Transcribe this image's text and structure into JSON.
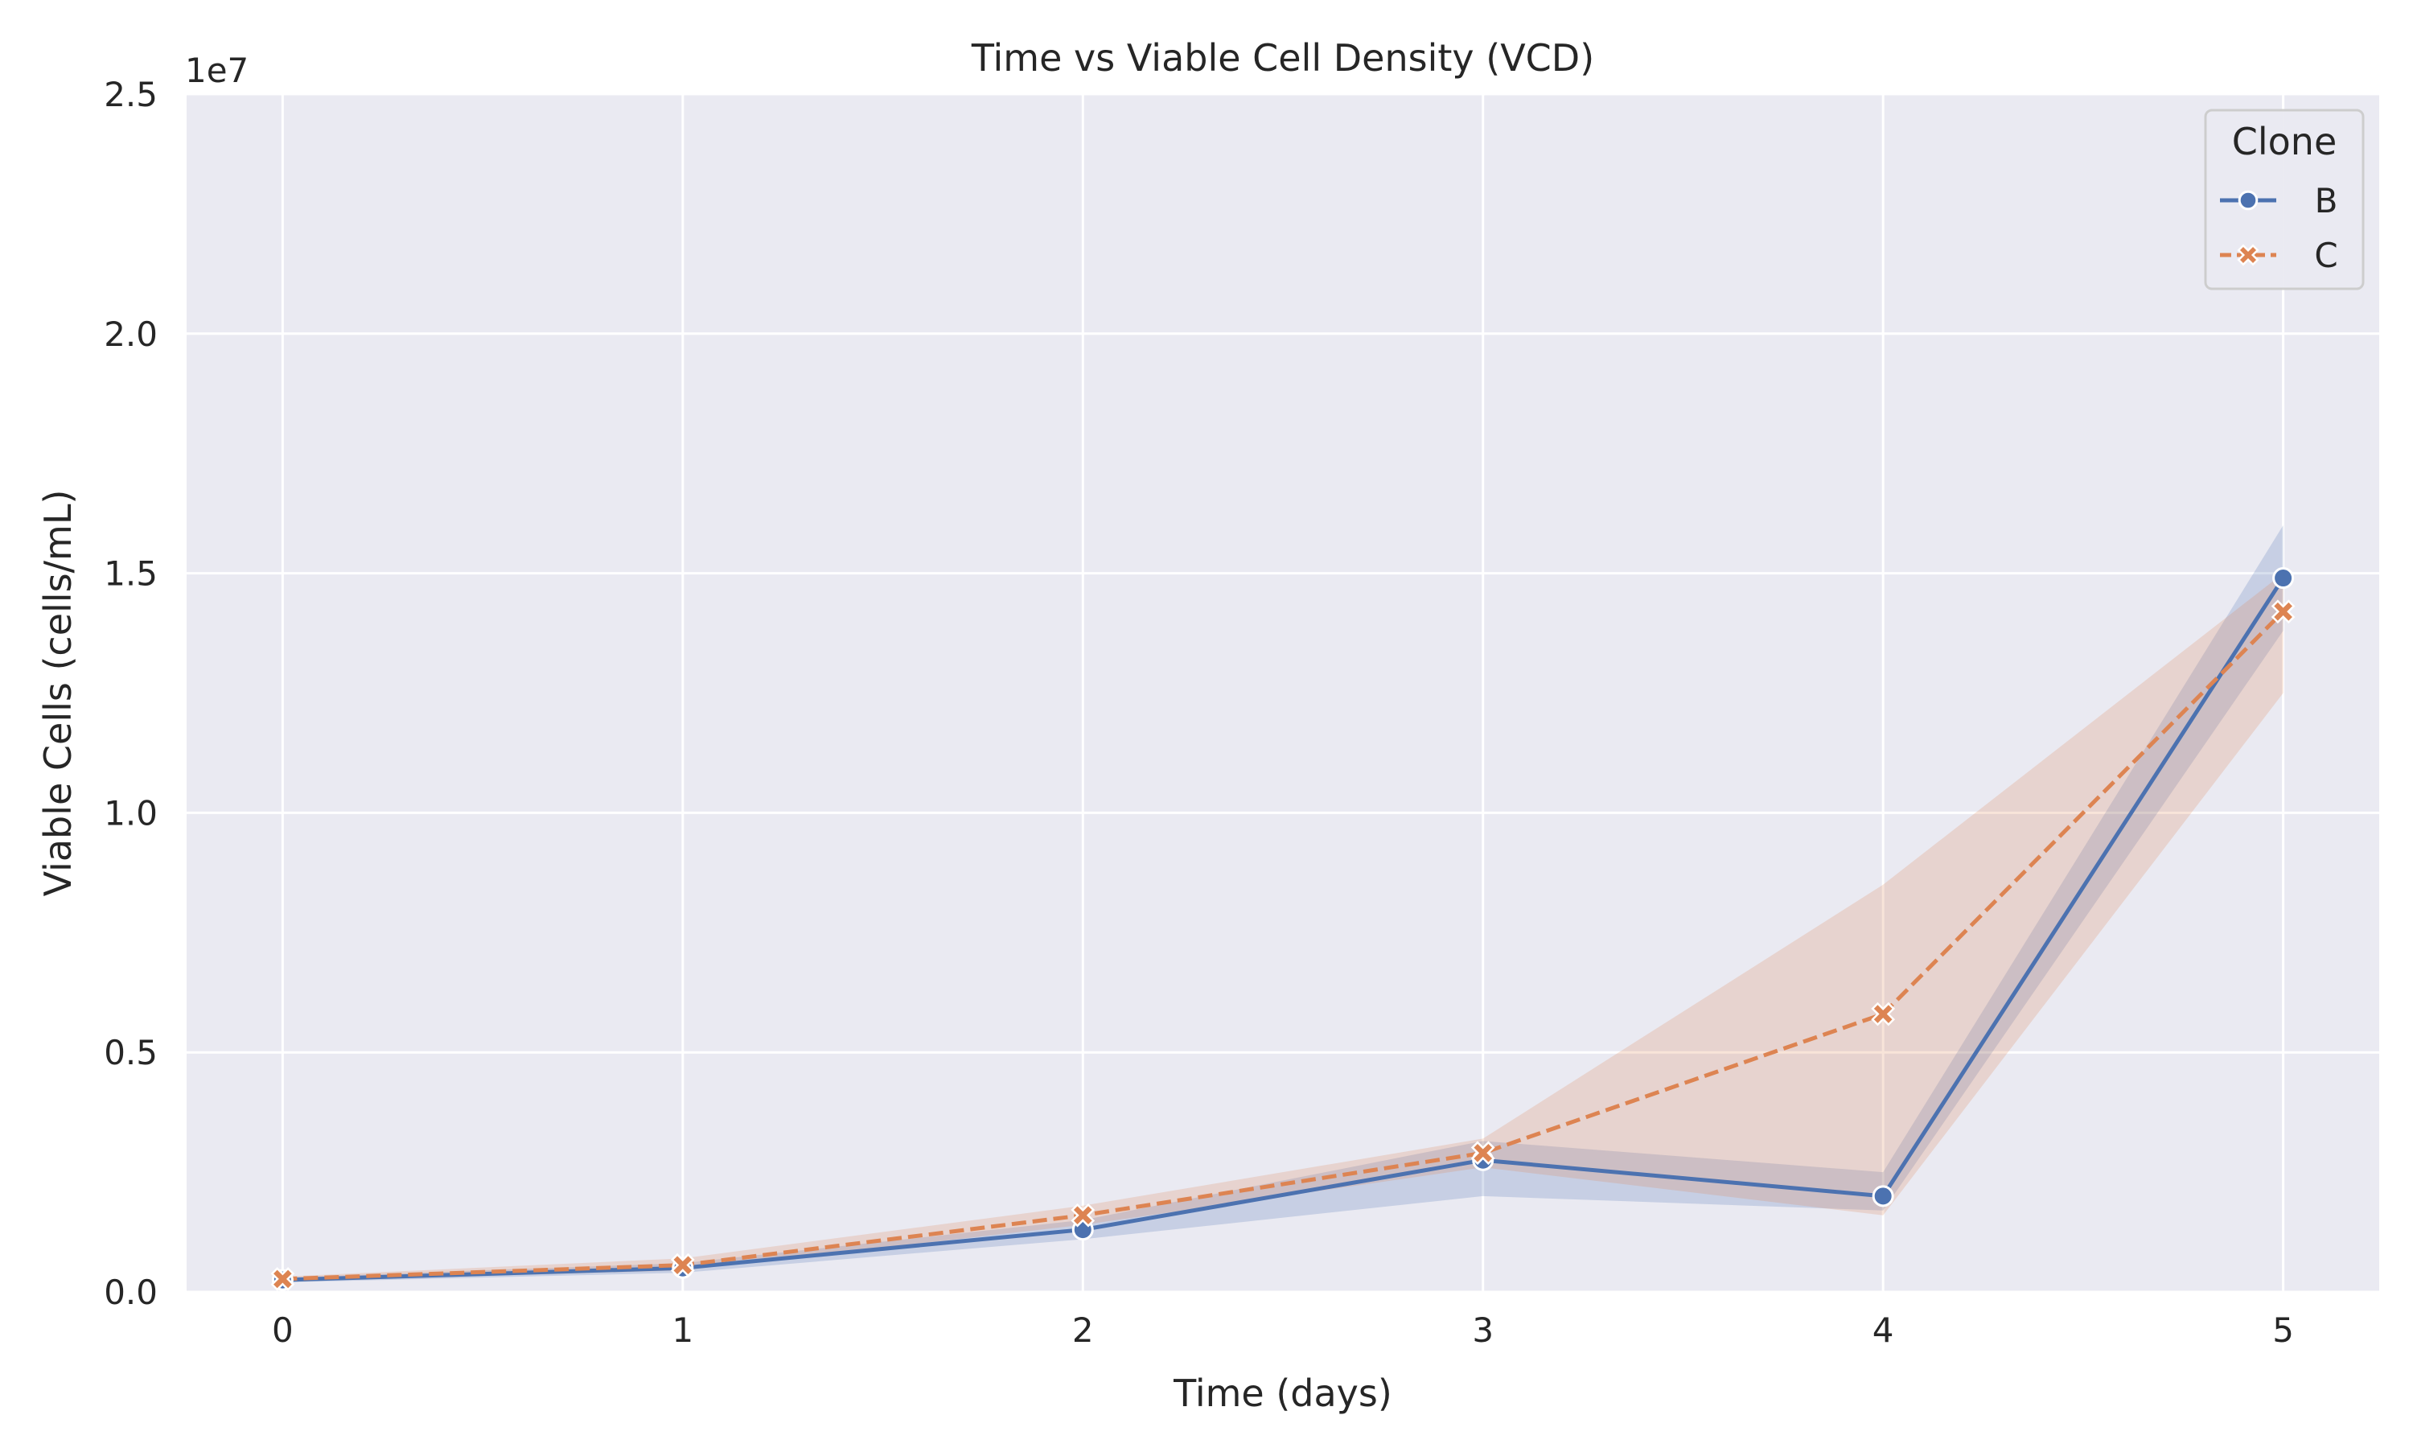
{
  "chart_data": {
    "type": "line",
    "title": "Time vs Viable Cell Density (VCD)",
    "xlabel": "Time (days)",
    "ylabel": "Viable Cells (cells/mL)",
    "y_offset_label": "1e7",
    "x": [
      0,
      1,
      2,
      3,
      4,
      5
    ],
    "x_tick_labels": [
      "0",
      "1",
      "2",
      "3",
      "4",
      "5"
    ],
    "y_ticks": [
      0,
      5000000,
      10000000,
      15000000,
      20000000,
      25000000
    ],
    "y_tick_labels": [
      "0.0",
      "0.5",
      "1.0",
      "1.5",
      "2.0",
      "2.5"
    ],
    "xlim": [
      -0.24,
      5.24
    ],
    "ylim": [
      0,
      25000000
    ],
    "grid": true,
    "legend": {
      "title": "Clone",
      "placement": "top-right"
    },
    "series": [
      {
        "name": "B",
        "color": "#4c72b0",
        "line_style": "solid",
        "marker": "circle",
        "values": [
          250000,
          500000,
          1300000,
          2750000,
          2000000,
          14900000
        ],
        "ci_lower": [
          200000,
          400000,
          1100000,
          2000000,
          1700000,
          13800000
        ],
        "ci_upper": [
          300000,
          600000,
          1500000,
          3150000,
          2500000,
          16000000
        ]
      },
      {
        "name": "C",
        "color": "#dd8452",
        "line_style": "dashed",
        "marker": "x",
        "values": [
          270000,
          560000,
          1600000,
          2900000,
          5800000,
          14200000
        ],
        "ci_lower": [
          220000,
          450000,
          1400000,
          2600000,
          1600000,
          12500000
        ],
        "ci_upper": [
          320000,
          700000,
          1800000,
          3200000,
          8500000,
          15000000
        ]
      }
    ]
  }
}
